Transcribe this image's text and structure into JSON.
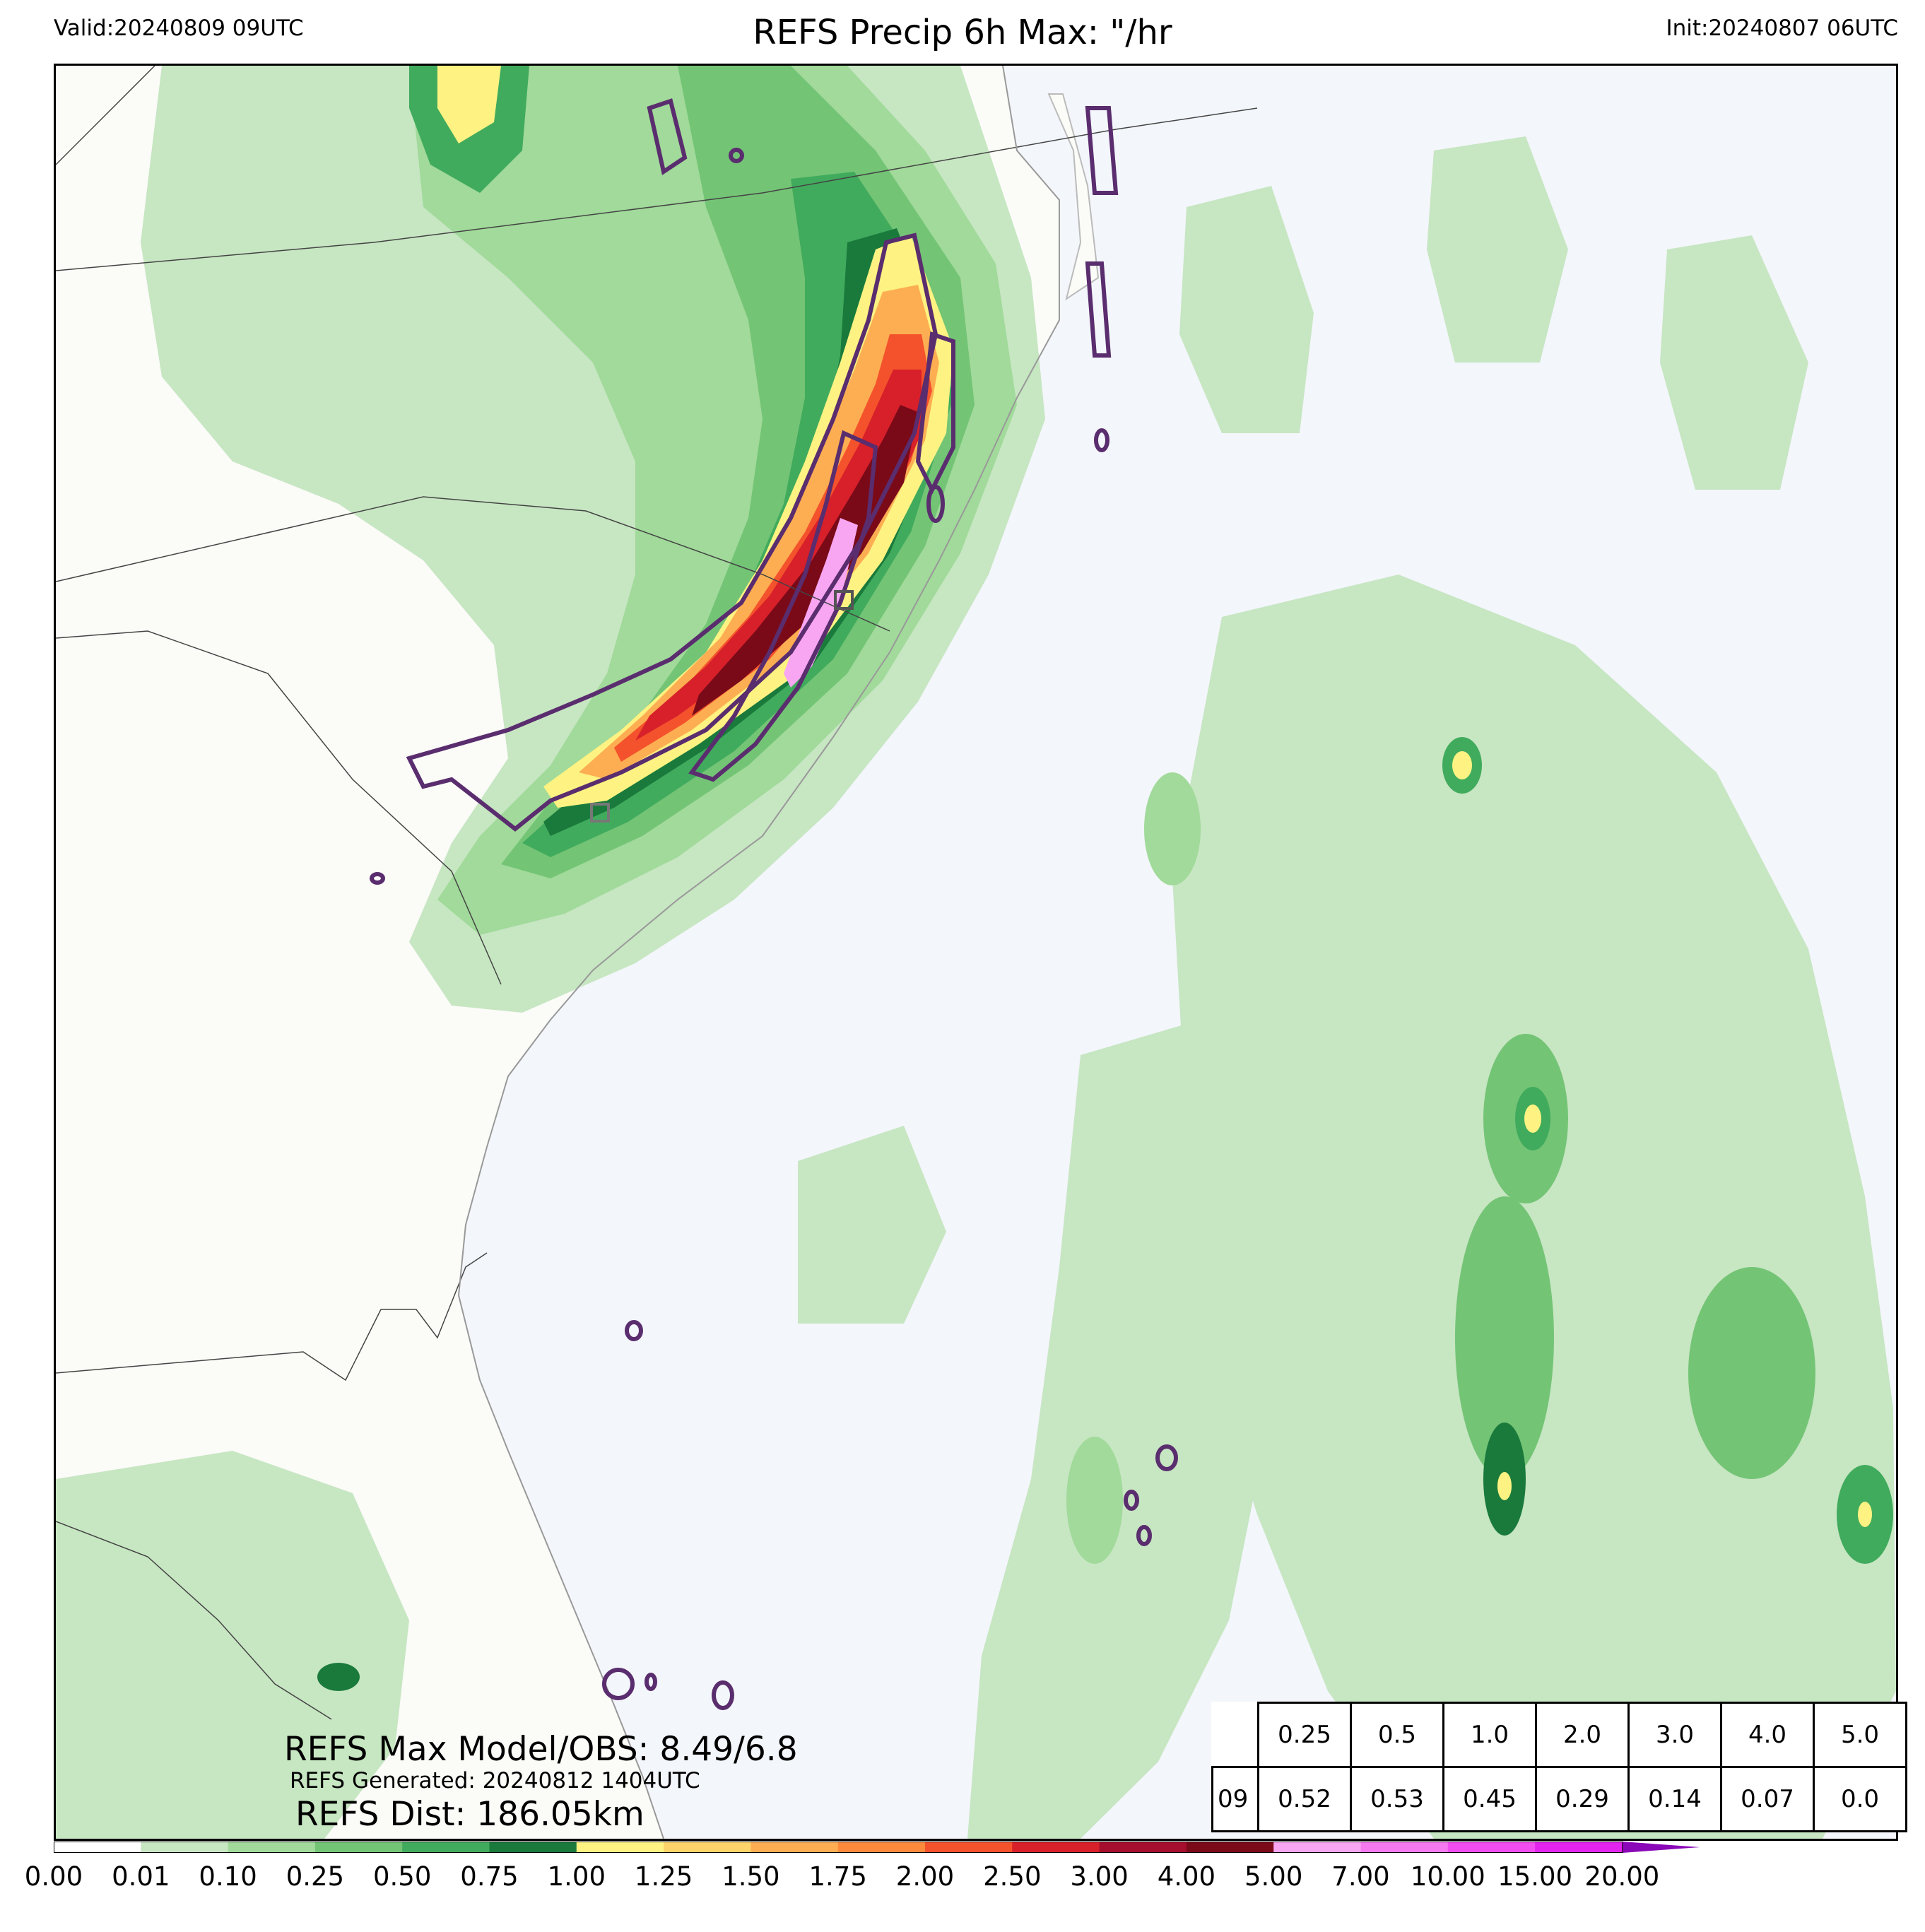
{
  "header": {
    "valid": "Valid:20240809 09UTC",
    "title": "REFS Precip 6h Max: \"/hr",
    "init": "Init:20240807 06UTC"
  },
  "map": {
    "land_color": "#fbfbf8",
    "ocean_color": "#f3f6fb",
    "contour_color": "#5a2d6e"
  },
  "stats": {
    "max_model_obs": "REFS Max Model/OBS: 8.49/6.8",
    "generated": "REFS Generated: 20240812 1404UTC",
    "dist": "REFS Dist: 186.05km"
  },
  "prob_table": {
    "thresholds": [
      "0.25",
      "0.5",
      "1.0",
      "2.0",
      "3.0",
      "4.0",
      "5.0"
    ],
    "rows": [
      {
        "hour": "09",
        "values": [
          "0.52",
          "0.53",
          "0.45",
          "0.29",
          "0.14",
          "0.07",
          "0.0"
        ]
      }
    ]
  },
  "colorbar": {
    "ticks": [
      "0.00",
      "0.01",
      "0.10",
      "0.25",
      "0.50",
      "0.75",
      "1.00",
      "1.25",
      "1.50",
      "1.75",
      "2.00",
      "2.50",
      "3.00",
      "4.00",
      "5.00",
      "7.00",
      "10.00",
      "15.00",
      "20.00"
    ],
    "colors": [
      "#ffffff",
      "#c7e6c2",
      "#a1da9a",
      "#74c476",
      "#41ab5d",
      "#1a7a3c",
      "#fef382",
      "#fed46a",
      "#fdae52",
      "#fc8a3d",
      "#f4522c",
      "#d7202a",
      "#a50f2d",
      "#7a0a18",
      "#f8a6f2",
      "#f57af0",
      "#f24df0",
      "#e324ee",
      "#9a10c8"
    ],
    "extend_color": "#8a08b8"
  }
}
